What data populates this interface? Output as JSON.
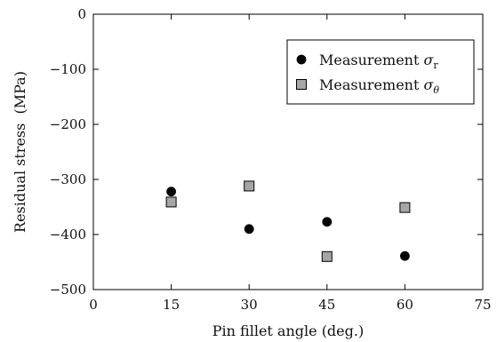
{
  "chart_data": {
    "type": "scatter",
    "xlabel": "Pin fillet angle (deg.)",
    "ylabel": "Residual stress  (MPa)",
    "xlim": [
      0,
      75
    ],
    "ylim": [
      -500,
      0
    ],
    "xticks": [
      0,
      15,
      30,
      45,
      60,
      75
    ],
    "yticks": [
      0,
      -100,
      -200,
      -300,
      -400,
      -500
    ],
    "xtick_labels": [
      "0",
      "15",
      "30",
      "45",
      "60",
      "75"
    ],
    "ytick_labels": [
      "0",
      "−100",
      "−200",
      "−300",
      "−400",
      "−500"
    ],
    "grid": false,
    "legend_position": "top-right",
    "series": [
      {
        "name": "Measurement σr",
        "marker": "circle",
        "color": "#000000",
        "x": [
          15,
          30,
          45,
          60
        ],
        "y": [
          -322,
          -390,
          -377,
          -439
        ]
      },
      {
        "name": "Measurement σθ",
        "marker": "square",
        "color": "#a6a6a6",
        "x": [
          15,
          30,
          45,
          60
        ],
        "y": [
          -341,
          -312,
          -440,
          -351
        ]
      }
    ],
    "legend": {
      "label_prefix": "Measurement",
      "symbol": "σ",
      "subscripts": [
        "r",
        "θ"
      ]
    }
  }
}
